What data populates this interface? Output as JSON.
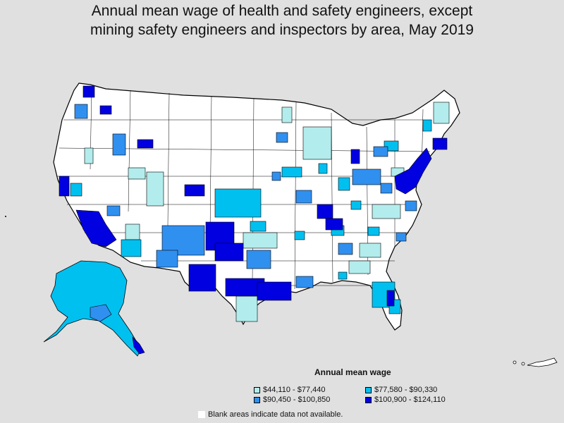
{
  "title": {
    "line1": "Annual mean wage of health and safety engineers, except",
    "line2": "mining safety engineers and inspectors by area, May 2019"
  },
  "colors": {
    "background": "#e0e0e0",
    "blank": "#ffffff",
    "tier1": "#b3ecec",
    "tier2": "#00c0f0",
    "tier3": "#3090f0",
    "tier4": "#0000e0",
    "border": "#000000"
  },
  "legend": {
    "heading": "Annual mean wage",
    "items": [
      {
        "label": "$44,110 - $77,440",
        "color": "#b3ecec"
      },
      {
        "label": "$77,580 - $90,330",
        "color": "#00c0f0"
      },
      {
        "label": "$90,450 - $100,850",
        "color": "#3090f0"
      },
      {
        "label": "$100,900 - $124,110",
        "color": "#0000e0"
      }
    ],
    "footnote": "Blank areas indicate data not available."
  }
}
